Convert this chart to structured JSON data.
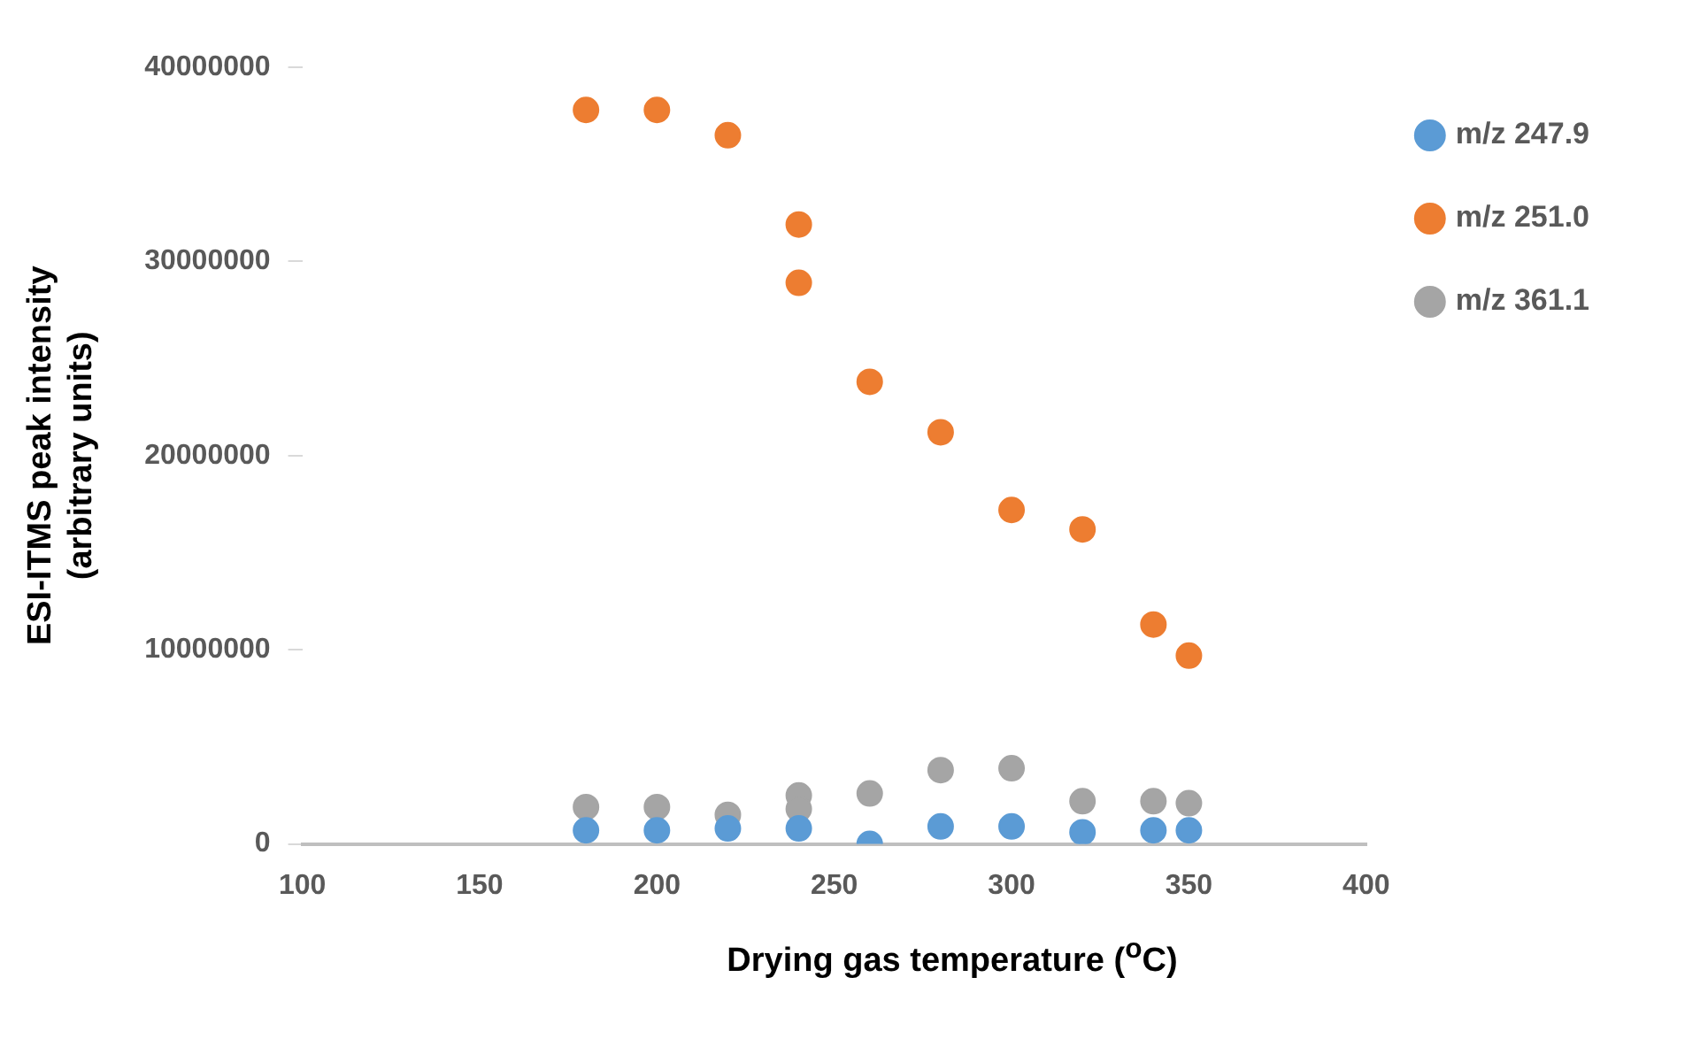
{
  "chart_data": {
    "type": "scatter",
    "xlabel": "Drying gas temperature  ($^{o}$C)",
    "ylabel": "ESI-ITMS peak intensity\n(arbitrary units)",
    "xlim": [
      100,
      400
    ],
    "xticks": [
      100,
      150,
      200,
      250,
      300,
      350,
      400
    ],
    "ylim": [
      0,
      40000000
    ],
    "yticks": [
      0,
      10000000,
      20000000,
      30000000,
      40000000
    ],
    "grid": false,
    "legend": "right",
    "marker": "circle",
    "series": [
      {
        "name": "m/z 247.9",
        "color": "#5b9bd5",
        "x": [
          180,
          200,
          220,
          240,
          260,
          280,
          300,
          320,
          340,
          350
        ],
        "values": [
          700000,
          700000,
          800000,
          800000,
          0,
          900000,
          900000,
          600000,
          700000,
          700000
        ]
      },
      {
        "name": "m/z 251.0",
        "color": "#ed7d31",
        "x": [
          180,
          200,
          220,
          240,
          240,
          260,
          280,
          300,
          320,
          340,
          350
        ],
        "values": [
          37800000,
          37800000,
          36500000,
          31900000,
          28900000,
          23800000,
          21200000,
          17200000,
          16200000,
          11300000,
          9700000
        ]
      },
      {
        "name": "m/z 361.1",
        "color": "#a5a5a5",
        "x": [
          180,
          200,
          220,
          240,
          240,
          260,
          280,
          300,
          320,
          340,
          350
        ],
        "values": [
          1900000,
          1900000,
          1500000,
          2500000,
          1800000,
          2600000,
          3800000,
          3900000,
          2200000,
          2200000,
          2100000
        ]
      }
    ]
  }
}
